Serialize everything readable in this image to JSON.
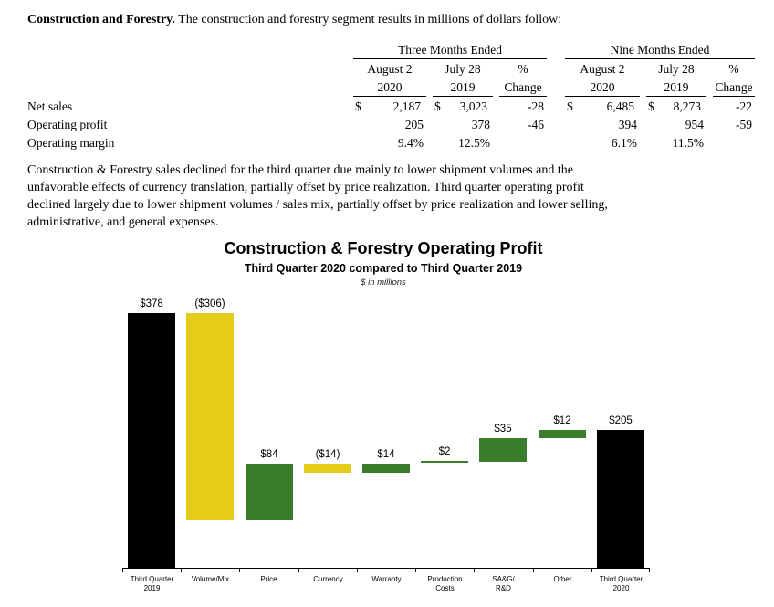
{
  "page": {
    "section_title": "Construction and Forestry.",
    "section_intro": " The construction and forestry segment results in millions of dollars follow:",
    "commentary": "Construction & Forestry sales declined for the third quarter due mainly to lower shipment volumes and the\nunfavorable effects of currency translation, partially offset by price realization. Third quarter operating profit\ndeclined largely due to lower shipment volumes / sales mix, partially offset by price realization and lower selling,\nadministrative, and general expenses."
  },
  "table": {
    "group_headers": [
      {
        "label": "Three Months Ended"
      },
      {
        "label": "Nine Months Ended"
      }
    ],
    "column_headers": [
      {
        "line1": "August 2",
        "line2": "2020"
      },
      {
        "line1": "July 28",
        "line2": "2019"
      },
      {
        "line1": "%",
        "line2": "Change"
      },
      {
        "line1": "August 2",
        "line2": "2020"
      },
      {
        "line1": "July 28",
        "line2": "2019"
      },
      {
        "line1": "%",
        "line2": "Change"
      }
    ],
    "rows": [
      {
        "label": "Net sales",
        "cells": [
          {
            "prefix": "$",
            "value": "2,187"
          },
          {
            "prefix": "$",
            "value": "3,023"
          },
          {
            "value": "-28"
          },
          {
            "prefix": "$",
            "value": "6,485"
          },
          {
            "prefix": "$",
            "value": "8,273"
          },
          {
            "value": "-22"
          }
        ]
      },
      {
        "label": "Operating profit",
        "cells": [
          {
            "value": "205"
          },
          {
            "value": "378"
          },
          {
            "value": "-46"
          },
          {
            "value": "394"
          },
          {
            "value": "954"
          },
          {
            "value": "-59"
          }
        ]
      },
      {
        "label": "Operating margin",
        "cells": [
          {
            "value": "9.4%"
          },
          {
            "value": "12.5%"
          },
          {
            "value": ""
          },
          {
            "value": "6.1%"
          },
          {
            "value": "11.5%"
          },
          {
            "value": ""
          }
        ]
      }
    ]
  },
  "chart_data": {
    "type": "bar",
    "subtype": "waterfall",
    "title": "Construction & Forestry Operating Profit",
    "subtitle": "Third Quarter 2020 compared to Third Quarter 2019",
    "units_note": "$ in millions",
    "ylim": [
      0,
      378
    ],
    "grid": false,
    "legend": false,
    "bars": [
      {
        "category": "Third Quarter\n2019",
        "label": "$378",
        "value": 378,
        "kind": "total"
      },
      {
        "category": "Volume/Mix",
        "label": "($306)",
        "value": -306,
        "kind": "delta"
      },
      {
        "category": "Price",
        "label": "$84",
        "value": 84,
        "kind": "delta"
      },
      {
        "category": "Currency",
        "label": "($14)",
        "value": -14,
        "kind": "delta"
      },
      {
        "category": "Warranty",
        "label": "$14",
        "value": 14,
        "kind": "delta"
      },
      {
        "category": "Production\nCosts",
        "label": "$2",
        "value": 2,
        "kind": "delta"
      },
      {
        "category": "SA&G/\nR&D",
        "label": "$35",
        "value": 35,
        "kind": "delta"
      },
      {
        "category": "Other",
        "label": "$12",
        "value": 12,
        "kind": "delta"
      },
      {
        "category": "Third Quarter\n2020",
        "label": "$205",
        "value": 205,
        "kind": "total"
      }
    ],
    "colors": {
      "total": "#000000",
      "increase": "#377d2b",
      "decrease": "#e5cc18"
    }
  }
}
